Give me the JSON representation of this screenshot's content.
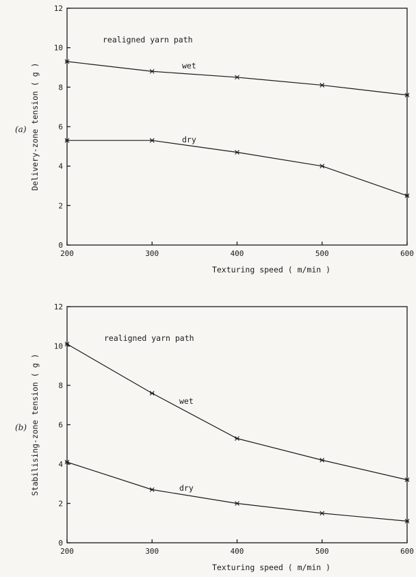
{
  "chart_data": [
    {
      "type": "line",
      "panel_label": "(a)",
      "xlabel": "Texturing speed ( m/min )",
      "ylabel": "Delivery-zone tension ( g )",
      "annotation": "realigned yarn path",
      "x": [
        200,
        300,
        400,
        500,
        600
      ],
      "xticks": [
        "200",
        "300",
        "400",
        "500",
        "600"
      ],
      "yticks": [
        "0",
        "2",
        "4",
        "6",
        "8",
        "10",
        "12"
      ],
      "xlim": [
        200,
        600
      ],
      "ylim": [
        0,
        12
      ],
      "series": [
        {
          "name": "wet",
          "values": [
            9.3,
            8.8,
            8.5,
            8.1,
            7.6
          ]
        },
        {
          "name": "dry",
          "values": [
            5.3,
            5.3,
            4.7,
            4.0,
            2.5
          ]
        }
      ]
    },
    {
      "type": "line",
      "panel_label": "(b)",
      "xlabel": "Texturing speed ( m/min )",
      "ylabel": "Stabilising-zone tension ( g )",
      "annotation": "realigned yarn path",
      "x": [
        200,
        300,
        400,
        500,
        600
      ],
      "xticks": [
        "200",
        "300",
        "400",
        "500",
        "600"
      ],
      "yticks": [
        "0",
        "2",
        "4",
        "6",
        "8",
        "10",
        "12"
      ],
      "xlim": [
        200,
        600
      ],
      "ylim": [
        0,
        12
      ],
      "series": [
        {
          "name": "wet",
          "values": [
            10.1,
            7.6,
            5.3,
            4.2,
            3.2
          ]
        },
        {
          "name": "dry",
          "values": [
            4.1,
            2.7,
            2.0,
            1.5,
            1.1
          ]
        }
      ]
    }
  ]
}
